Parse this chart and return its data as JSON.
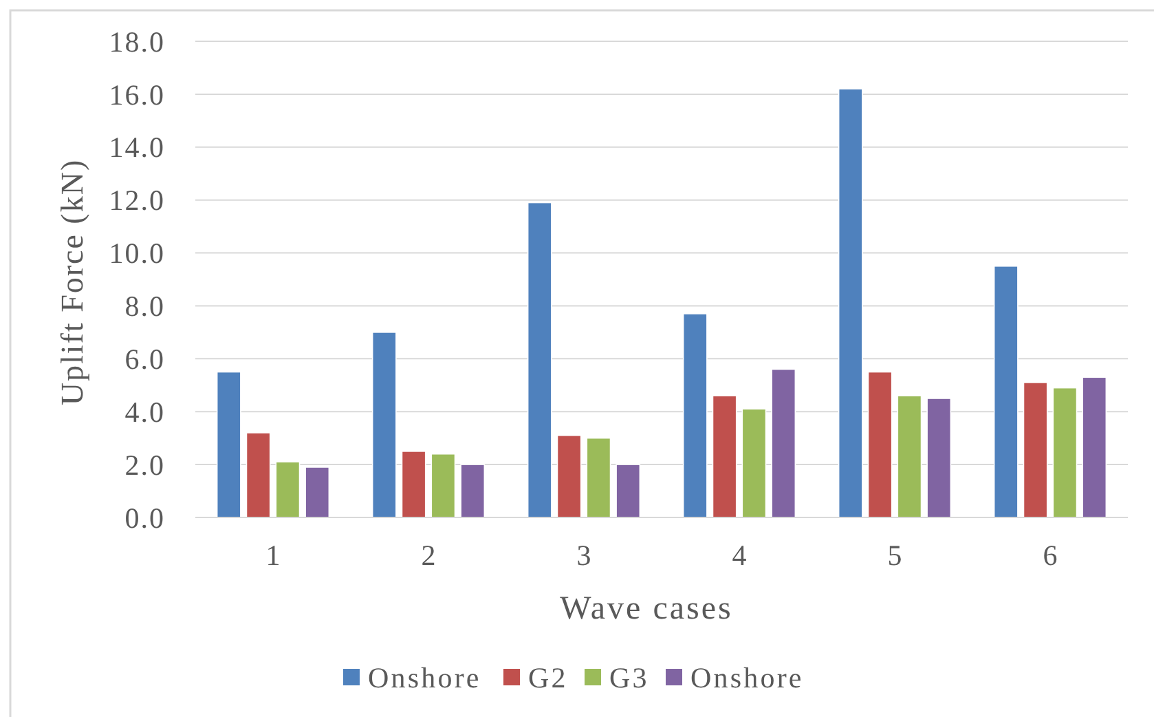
{
  "chart_data": {
    "type": "bar",
    "xlabel": "Wave cases",
    "ylabel": "Uplift Force (kN)",
    "categories": [
      "1",
      "2",
      "3",
      "4",
      "5",
      "6"
    ],
    "series": [
      {
        "name": "Onshore",
        "color": "#4f81bd",
        "values": [
          5.5,
          7.0,
          11.9,
          7.7,
          16.2,
          9.5
        ]
      },
      {
        "name": "G2",
        "color": "#c0504d",
        "values": [
          3.2,
          2.5,
          3.1,
          4.6,
          5.5,
          5.1
        ]
      },
      {
        "name": "G3",
        "color": "#9bbb59",
        "values": [
          2.1,
          2.4,
          3.0,
          4.1,
          4.6,
          4.9
        ]
      },
      {
        "name": "Onshore",
        "color": "#8064a2",
        "values": [
          1.9,
          2.0,
          2.0,
          5.6,
          4.5,
          5.3
        ]
      }
    ],
    "ylim": [
      0,
      18
    ],
    "yticks": [
      {
        "value": 0,
        "label": "0.0"
      },
      {
        "value": 2,
        "label": "2.0"
      },
      {
        "value": 4,
        "label": "4.0"
      },
      {
        "value": 6,
        "label": "6.0"
      },
      {
        "value": 8,
        "label": "8.0"
      },
      {
        "value": 10,
        "label": "10.0"
      },
      {
        "value": 12,
        "label": "12.0"
      },
      {
        "value": 14,
        "label": "14.0"
      },
      {
        "value": 16,
        "label": "16.0"
      },
      {
        "value": 18,
        "label": "18.0"
      }
    ],
    "grid": "y",
    "legend": "bottom"
  }
}
